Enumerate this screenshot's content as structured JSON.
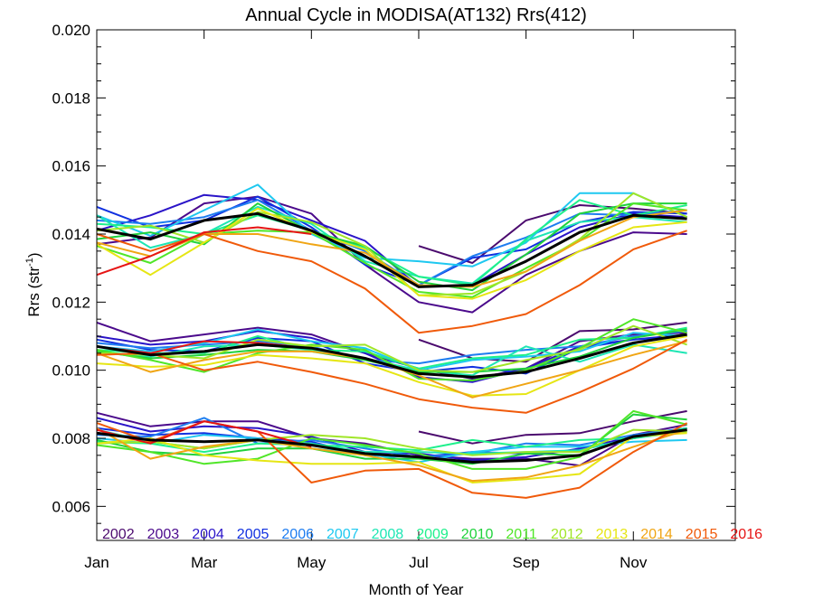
{
  "chart_data": {
    "type": "line",
    "title": "Annual Cycle in MODISA(AT132) Rrs(412)",
    "xlabel": "Month of Year",
    "ylabel_main": "Rrs (str",
    "ylabel_sup": "-1",
    "ylabel_close": ")",
    "xlim": [
      1,
      12.9
    ],
    "ylim": [
      0.005,
      0.02
    ],
    "xticks": [
      {
        "x": 1,
        "label": "Jan"
      },
      {
        "x": 3,
        "label": "Mar"
      },
      {
        "x": 5,
        "label": "May"
      },
      {
        "x": 7,
        "label": "Jul"
      },
      {
        "x": 9,
        "label": "Sep"
      },
      {
        "x": 11,
        "label": "Nov"
      }
    ],
    "yticks": [
      "0.006",
      "0.008",
      "0.010",
      "0.012",
      "0.014",
      "0.016",
      "0.018",
      "0.020"
    ],
    "grid": false,
    "legend_placement": "bottom inside plot",
    "x": [
      1,
      2,
      3,
      4,
      5,
      6,
      7,
      8,
      9,
      10,
      11,
      12
    ],
    "series": [
      {
        "name": "2002",
        "color": "#4b0a6e",
        "upper": [
          null,
          null,
          null,
          null,
          null,
          null,
          13.65,
          13.15,
          14.4,
          14.85,
          14.75,
          14.6
        ],
        "middle": [
          null,
          null,
          null,
          null,
          null,
          null,
          10.9,
          10.35,
          10.25,
          11.15,
          11.2,
          11.4
        ],
        "lower": [
          null,
          null,
          null,
          null,
          null,
          null,
          8.2,
          7.85,
          8.1,
          8.15,
          8.5,
          8.8
        ]
      },
      {
        "name": "2003",
        "color": "#4b0a8c",
        "upper": [
          13.7,
          13.9,
          14.9,
          15.1,
          14.6,
          13.1,
          12.0,
          11.7,
          12.8,
          13.5,
          14.05,
          14.0
        ],
        "middle": [
          11.4,
          10.85,
          11.05,
          11.25,
          11.05,
          10.5,
          10.05,
          9.75,
          10.05,
          10.85,
          11.05,
          11.1
        ],
        "lower": [
          8.75,
          8.35,
          8.5,
          8.5,
          8.0,
          7.85,
          7.5,
          7.4,
          7.4,
          7.2,
          8.1,
          8.4
        ]
      },
      {
        "name": "2004",
        "color": "#2a14c8",
        "upper": [
          14.1,
          14.55,
          15.15,
          15.0,
          14.4,
          13.8,
          12.45,
          12.5,
          13.4,
          14.2,
          14.6,
          14.5
        ],
        "middle": [
          11.0,
          10.75,
          10.85,
          11.15,
          10.95,
          10.5,
          9.8,
          9.65,
          10.05,
          10.7,
          10.9,
          11.05
        ],
        "lower": [
          8.6,
          8.2,
          8.35,
          8.3,
          8.05,
          7.6,
          7.55,
          7.35,
          7.45,
          7.7,
          8.05,
          8.3
        ]
      },
      {
        "name": "2005",
        "color": "#1030e0",
        "upper": [
          14.8,
          14.2,
          14.4,
          15.1,
          14.2,
          13.1,
          12.5,
          13.3,
          13.55,
          14.35,
          14.65,
          14.6
        ],
        "middle": [
          10.9,
          10.6,
          10.55,
          10.95,
          10.85,
          10.2,
          9.95,
          10.1,
          9.9,
          10.65,
          10.9,
          11.0
        ],
        "lower": [
          8.3,
          8.1,
          8.15,
          8.0,
          7.9,
          7.5,
          7.45,
          7.6,
          7.55,
          7.65,
          8.0,
          8.25
        ]
      },
      {
        "name": "2006",
        "color": "#1e7df0",
        "upper": [
          14.4,
          14.3,
          14.5,
          15.0,
          14.1,
          13.5,
          12.5,
          13.35,
          13.9,
          14.6,
          14.55,
          14.7
        ],
        "middle": [
          10.8,
          10.65,
          10.75,
          10.85,
          10.7,
          10.3,
          10.2,
          10.45,
          10.6,
          10.7,
          11.0,
          11.15
        ],
        "lower": [
          8.1,
          8.05,
          8.6,
          7.85,
          7.95,
          7.7,
          7.45,
          7.55,
          7.85,
          7.8,
          8.1,
          8.3
        ]
      },
      {
        "name": "2007",
        "color": "#1ec8f0",
        "upper": [
          14.55,
          13.95,
          14.7,
          15.45,
          14.0,
          13.3,
          13.2,
          13.05,
          13.75,
          15.2,
          15.2,
          14.5
        ],
        "middle": [
          10.7,
          10.55,
          10.8,
          11.2,
          10.85,
          10.65,
          10.0,
          10.3,
          10.4,
          10.55,
          11.1,
          11.0
        ],
        "lower": [
          8.0,
          7.85,
          8.1,
          8.0,
          7.7,
          7.55,
          7.3,
          7.6,
          7.75,
          7.75,
          7.9,
          7.95
        ]
      },
      {
        "name": "2008",
        "color": "#1ee6b4",
        "upper": [
          14.55,
          13.6,
          14.0,
          14.8,
          14.3,
          13.2,
          12.75,
          12.55,
          13.8,
          14.35,
          14.5,
          14.35
        ],
        "middle": [
          10.55,
          10.4,
          10.7,
          10.75,
          10.6,
          10.35,
          10.0,
          9.85,
          10.7,
          10.25,
          10.75,
          10.5
        ],
        "lower": [
          8.25,
          7.9,
          7.7,
          7.95,
          7.85,
          7.6,
          7.6,
          7.55,
          7.6,
          7.65,
          8.0,
          8.2
        ]
      },
      {
        "name": "2009",
        "color": "#1ef08c",
        "upper": [
          14.3,
          14.2,
          14.0,
          14.55,
          14.1,
          13.6,
          12.75,
          12.5,
          13.85,
          15.0,
          14.55,
          14.85
        ],
        "middle": [
          10.6,
          10.5,
          10.5,
          11.0,
          10.6,
          10.55,
          10.05,
          10.35,
          10.45,
          10.9,
          10.95,
          11.25
        ],
        "lower": [
          7.9,
          7.85,
          7.6,
          7.85,
          7.8,
          7.75,
          7.65,
          7.95,
          7.75,
          7.95,
          8.0,
          8.3
        ]
      },
      {
        "name": "2010",
        "color": "#20d23c",
        "upper": [
          13.85,
          14.05,
          13.7,
          14.9,
          14.05,
          13.65,
          12.6,
          12.35,
          13.4,
          14.6,
          14.9,
          14.9
        ],
        "middle": [
          10.55,
          10.35,
          10.45,
          10.6,
          10.55,
          10.3,
          9.95,
          9.95,
          10.05,
          10.4,
          10.95,
          11.2
        ],
        "lower": [
          7.95,
          7.6,
          7.5,
          7.7,
          7.7,
          7.4,
          7.4,
          7.25,
          7.55,
          7.5,
          8.7,
          8.55
        ]
      },
      {
        "name": "2011",
        "color": "#50e628",
        "upper": [
          13.65,
          13.15,
          14.0,
          14.1,
          14.05,
          13.15,
          12.3,
          12.15,
          13.0,
          13.8,
          14.9,
          14.7
        ],
        "middle": [
          10.6,
          10.3,
          9.95,
          10.5,
          10.75,
          10.6,
          9.75,
          9.7,
          10.0,
          10.65,
          11.5,
          11.1
        ],
        "lower": [
          7.8,
          7.6,
          7.25,
          7.4,
          8.0,
          7.8,
          7.55,
          7.1,
          7.1,
          7.45,
          8.8,
          8.4
        ]
      },
      {
        "name": "2012",
        "color": "#a0e628",
        "upper": [
          14.1,
          14.25,
          13.75,
          14.65,
          14.35,
          13.65,
          12.2,
          12.25,
          12.9,
          13.85,
          15.2,
          14.5
        ],
        "middle": [
          10.5,
          10.45,
          10.35,
          10.9,
          10.7,
          10.75,
          10.0,
          9.95,
          10.3,
          10.6,
          11.3,
          10.75
        ],
        "lower": [
          7.85,
          7.9,
          7.7,
          7.95,
          8.1,
          8.0,
          7.7,
          7.5,
          7.6,
          7.6,
          8.25,
          8.2
        ]
      },
      {
        "name": "2013",
        "color": "#e6e614",
        "upper": [
          13.7,
          12.8,
          13.75,
          14.75,
          14.05,
          13.55,
          12.2,
          12.1,
          12.65,
          13.5,
          14.2,
          14.35
        ],
        "middle": [
          10.2,
          10.1,
          10.15,
          10.45,
          10.35,
          10.2,
          9.65,
          9.25,
          9.3,
          10.0,
          10.7,
          11.0
        ],
        "lower": [
          7.85,
          8.0,
          7.5,
          7.35,
          7.25,
          7.25,
          7.3,
          6.7,
          6.8,
          6.95,
          8.05,
          8.15
        ]
      },
      {
        "name": "2014",
        "color": "#f0a514",
        "upper": [
          13.75,
          13.35,
          14.0,
          14.0,
          13.7,
          13.45,
          12.5,
          12.45,
          12.9,
          13.8,
          14.5,
          14.7
        ],
        "middle": [
          10.5,
          9.95,
          10.3,
          10.55,
          10.55,
          10.35,
          9.85,
          9.2,
          9.6,
          10.0,
          10.45,
          10.85
        ],
        "lower": [
          8.3,
          7.4,
          7.75,
          7.95,
          7.7,
          7.5,
          7.2,
          6.75,
          6.85,
          7.2,
          7.75,
          8.25
        ]
      },
      {
        "name": "2015",
        "color": "#f05a0a",
        "upper": [
          14.0,
          13.5,
          14.0,
          13.5,
          13.2,
          12.4,
          11.1,
          11.3,
          11.65,
          12.5,
          13.55,
          14.1
        ],
        "middle": [
          10.45,
          10.5,
          10.0,
          10.25,
          9.95,
          9.6,
          9.15,
          8.9,
          8.75,
          9.35,
          10.05,
          10.9
        ],
        "lower": [
          8.45,
          7.9,
          8.5,
          8.2,
          6.7,
          7.05,
          7.1,
          6.4,
          6.25,
          6.55,
          7.6,
          8.45
        ]
      },
      {
        "name": "2016",
        "color": "#e61414",
        "upper": [
          12.8,
          13.35,
          14.05,
          14.2,
          14.0,
          null,
          null,
          null,
          null,
          null,
          null,
          null
        ],
        "middle": [
          10.7,
          10.5,
          10.85,
          10.8,
          10.65,
          null,
          null,
          null,
          null,
          null,
          null,
          null
        ],
        "lower": [
          8.25,
          7.85,
          8.5,
          8.2,
          7.75,
          null,
          null,
          null,
          null,
          null,
          null,
          null
        ]
      }
    ],
    "mean": {
      "name": "",
      "color": "#000000",
      "upper": [
        14.15,
        13.85,
        14.4,
        14.6,
        14.1,
        13.35,
        12.45,
        12.5,
        13.2,
        14.05,
        14.55,
        14.45
      ],
      "middle": [
        10.7,
        10.45,
        10.55,
        10.75,
        10.65,
        10.35,
        9.9,
        9.8,
        9.95,
        10.35,
        10.8,
        11.05
      ],
      "lower": [
        8.15,
        7.95,
        7.9,
        7.95,
        7.8,
        7.55,
        7.45,
        7.3,
        7.35,
        7.5,
        8.05,
        8.25
      ]
    },
    "value_scale": 0.001
  }
}
